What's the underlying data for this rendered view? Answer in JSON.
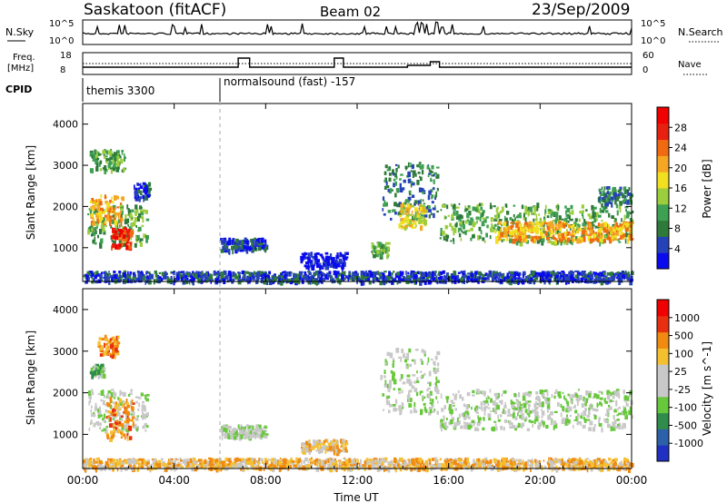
{
  "header": {
    "station": "Saskatoon (fitACF)",
    "beam": "Beam 02",
    "date": "23/Sep/2009"
  },
  "strip_labels": {
    "nsky": "N.Sky",
    "nsearch": "N.Search",
    "freq_line1": "Freq.",
    "freq_line2": "[MHz]",
    "nave": "Nave",
    "cpid": "CPID",
    "nsky_ticks": [
      "10^5",
      "10^0"
    ],
    "nsearch_ticks": [
      "10^5",
      "10^0"
    ],
    "freq_ticks": [
      "18",
      "8"
    ],
    "nave_ticks": [
      "60",
      "0"
    ]
  },
  "cpid_segments": [
    {
      "start_hour": 0.0,
      "label": "themis 3300"
    },
    {
      "start_hour": 6.0,
      "label": "normalsound (fast) -157"
    }
  ],
  "x_axis": {
    "label": "Time UT",
    "ticks": [
      "00:00",
      "04:00",
      "08:00",
      "12:00",
      "16:00",
      "20:00",
      "00:00"
    ],
    "range_hours": [
      0,
      24
    ]
  },
  "chart_data": [
    {
      "type": "heatmap",
      "name": "power",
      "ylabel": "Slant Range [km]",
      "yticks": [
        1000,
        2000,
        3000,
        4000
      ],
      "ylim": [
        180,
        4500
      ],
      "colorbar": {
        "title": "Power [dB]",
        "ticks": [
          "28",
          "24",
          "20",
          "16",
          "12",
          "8",
          "4"
        ],
        "colors": [
          "#0a0aee",
          "#2642b8",
          "#2e7a3a",
          "#3ea052",
          "#9ccd3c",
          "#f0e020",
          "#f5a623",
          "#ef6a10",
          "#e82010",
          "#f00000"
        ]
      },
      "regions": [
        {
          "t": [
            0.2,
            2.8
          ],
          "r": [
            1100,
            2100
          ],
          "level": 3
        },
        {
          "t": [
            1.2,
            2.1
          ],
          "r": [
            1000,
            1500
          ],
          "level": 8
        },
        {
          "t": [
            0.3,
            1.7
          ],
          "r": [
            1600,
            2300
          ],
          "level": 6
        },
        {
          "t": [
            0.3,
            1.8
          ],
          "r": [
            2900,
            3400
          ],
          "level": 3
        },
        {
          "t": [
            2.2,
            2.9
          ],
          "r": [
            2200,
            2600
          ],
          "level": 1
        },
        {
          "t": [
            6.0,
            8.0
          ],
          "r": [
            950,
            1250
          ],
          "level": 1
        },
        {
          "t": [
            9.5,
            11.5
          ],
          "r": [
            550,
            900
          ],
          "level": 0
        },
        {
          "t": [
            12.6,
            13.3
          ],
          "r": [
            800,
            1150
          ],
          "level": 3
        },
        {
          "t": [
            13.0,
            15.5
          ],
          "r": [
            1700,
            3100
          ],
          "level": 2
        },
        {
          "t": [
            13.8,
            15.0
          ],
          "r": [
            1500,
            2100
          ],
          "level": 5
        },
        {
          "t": [
            15.6,
            24.0
          ],
          "r": [
            1150,
            2100
          ],
          "level": 3
        },
        {
          "t": [
            18.0,
            24.0
          ],
          "r": [
            1200,
            1650
          ],
          "level": 6
        },
        {
          "t": [
            22.5,
            24.0
          ],
          "r": [
            2100,
            2500
          ],
          "level": 2
        },
        {
          "t": [
            0.0,
            24.0
          ],
          "r": [
            200,
            450
          ],
          "level": 1
        }
      ]
    },
    {
      "type": "heatmap",
      "name": "velocity",
      "ylabel": "Slant Range [km]",
      "yticks": [
        1000,
        2000,
        3000,
        4000
      ],
      "ylim": [
        180,
        4500
      ],
      "colorbar": {
        "title": "Velocity [m s^-1]",
        "ticks": [
          "1000",
          "500",
          "100",
          "25",
          "-25",
          "-100",
          "-500",
          "-1000"
        ],
        "colors": [
          "#2030c0",
          "#2c60a8",
          "#2f8c4a",
          "#68c83c",
          "#c8c8c8",
          "#c8c8c8",
          "#f5c030",
          "#f08a10",
          "#e83010",
          "#f00000"
        ]
      },
      "regions": [
        {
          "t": [
            0.2,
            2.8
          ],
          "r": [
            1100,
            2100
          ],
          "level": 4
        },
        {
          "t": [
            1.0,
            2.2
          ],
          "r": [
            900,
            1900
          ],
          "level": 7
        },
        {
          "t": [
            0.6,
            1.5
          ],
          "r": [
            2900,
            3400
          ],
          "level": 7
        },
        {
          "t": [
            0.3,
            0.9
          ],
          "r": [
            2400,
            2700
          ],
          "level": 3
        },
        {
          "t": [
            6.0,
            8.0
          ],
          "r": [
            950,
            1250
          ],
          "level": 4
        },
        {
          "t": [
            9.5,
            11.5
          ],
          "r": [
            600,
            900
          ],
          "level": 6
        },
        {
          "t": [
            13.0,
            15.5
          ],
          "r": [
            1500,
            3100
          ],
          "level": 4
        },
        {
          "t": [
            15.6,
            24.0
          ],
          "r": [
            1150,
            2100
          ],
          "level": 4
        },
        {
          "t": [
            0.0,
            24.0
          ],
          "r": [
            200,
            450
          ],
          "level": 6
        }
      ]
    }
  ]
}
